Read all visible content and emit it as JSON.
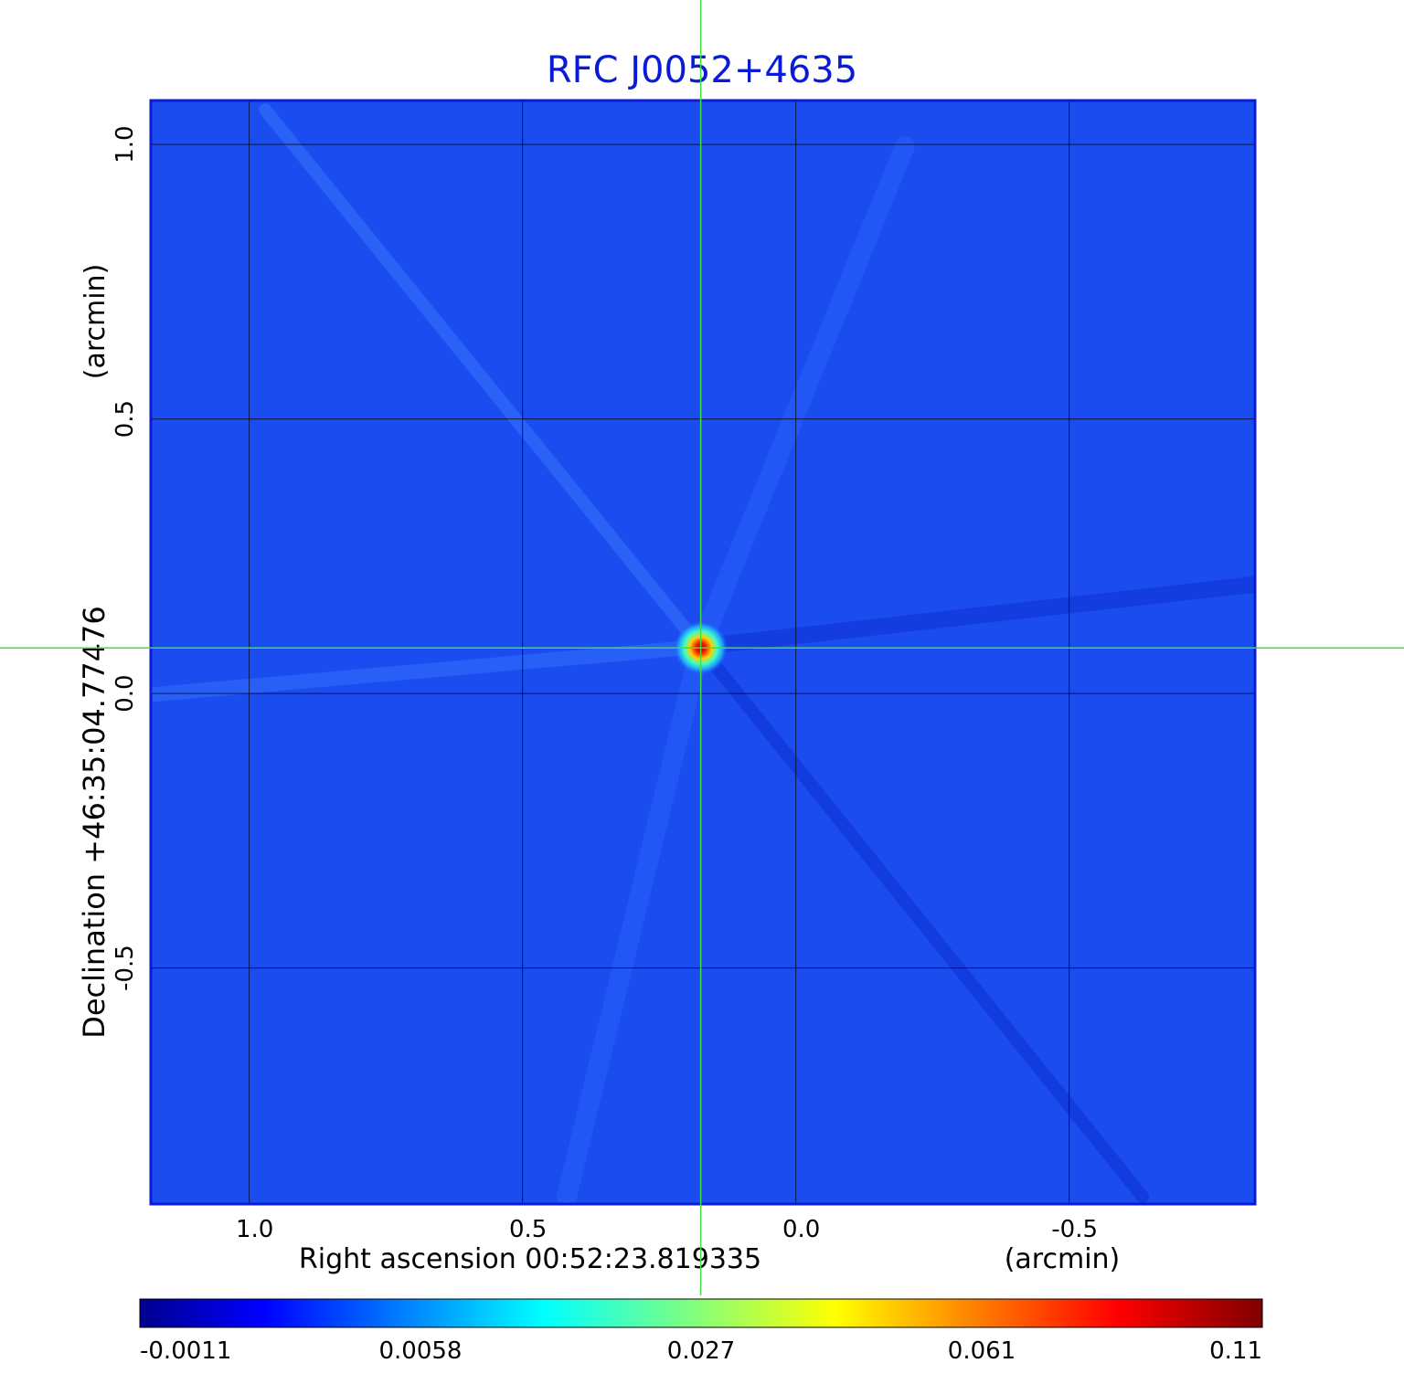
{
  "chart_data": {
    "type": "heatmap",
    "title": "RFC J0052+4635",
    "xlabel": "Right ascension  00:52:23.819335",
    "xunit": "(arcmin)",
    "ylabel": "Declination  +46:35:04.77476",
    "yunit": "(arcmin)",
    "xlim": [
      1.18,
      -0.84
    ],
    "ylim": [
      -0.93,
      1.08
    ],
    "x_ticks": [
      1.0,
      0.5,
      0.0,
      -0.5
    ],
    "x_tick_labels": [
      "1.0",
      "0.5",
      "0.0",
      "-0.5"
    ],
    "y_ticks": [
      1.0,
      0.5,
      0.0,
      -0.5
    ],
    "y_tick_labels": [
      "1.0",
      "0.5",
      "0.0",
      "-0.5"
    ],
    "grid": true,
    "crosshair": {
      "x": 0.174,
      "y": 0.083
    },
    "peak": {
      "x": 0.174,
      "y": 0.083,
      "value": 0.11
    },
    "colorbar": {
      "ticks": [
        "-0.0011",
        "0.0058",
        "0.027",
        "0.061",
        "0.11"
      ],
      "colormap": "jet"
    },
    "background_color": "#1a4cf0",
    "title_color": "#0a1bd8",
    "crosshair_color": "#40e040"
  }
}
